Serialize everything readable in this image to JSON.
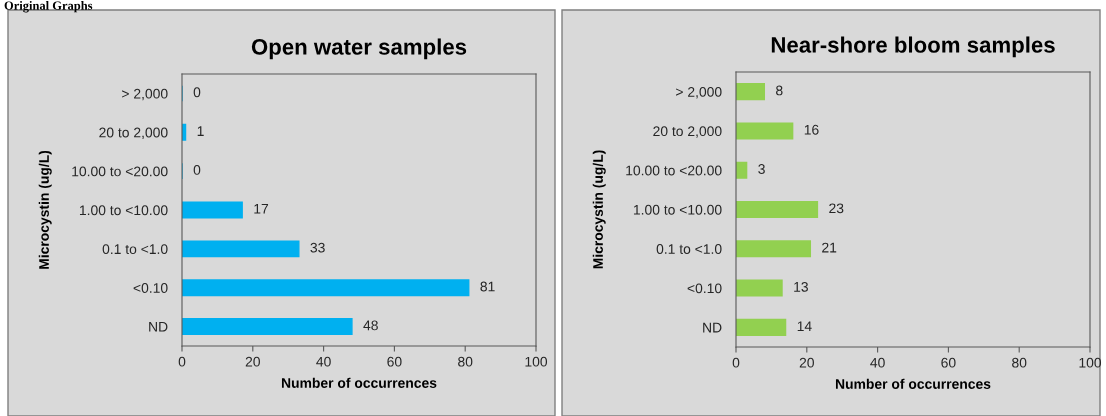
{
  "chart_data": [
    {
      "type": "bar",
      "orientation": "horizontal",
      "title": "Open water samples",
      "xlabel": "Number of occurrences",
      "ylabel": "Microcystin (ug/L)",
      "categories": [
        "> 2,000",
        "20 to 2,000",
        "10.00 to <20.00",
        "1.00 to <10.00",
        "0.1 to <1.0",
        "<0.10",
        "ND"
      ],
      "values": [
        0,
        1,
        0,
        17,
        33,
        81,
        48
      ],
      "color": "#00b0f0",
      "xlim": [
        0,
        100
      ],
      "xticks": [
        0,
        20,
        40,
        60,
        80,
        100
      ],
      "data_labels": true,
      "grid": false,
      "annotations": [
        "Original Graphs"
      ]
    },
    {
      "type": "bar",
      "orientation": "horizontal",
      "title": "Near-shore bloom samples",
      "xlabel": "Number of occurrences",
      "ylabel": "Microcystin (ug/L)",
      "categories": [
        "> 2,000",
        "20 to 2,000",
        "10.00 to <20.00",
        "1.00 to <10.00",
        "0.1 to <1.0",
        "<0.10",
        "ND"
      ],
      "values": [
        8,
        16,
        3,
        23,
        21,
        13,
        14
      ],
      "color": "#92d050",
      "xlim": [
        0,
        100
      ],
      "xticks": [
        0,
        20,
        40,
        60,
        80,
        100
      ],
      "data_labels": true,
      "grid": false
    }
  ]
}
